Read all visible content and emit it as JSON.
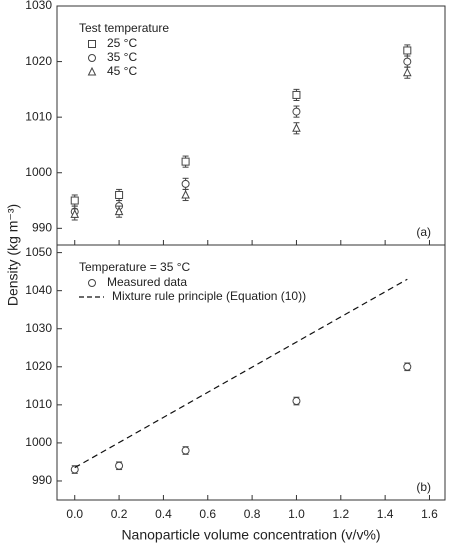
{
  "chart_data": [
    {
      "type": "scatter",
      "y_label": "Density (kg m⁻³)",
      "annotation": "(a)",
      "legend_title": "Test temperature",
      "x": [
        0,
        0.2,
        0.5,
        1.0,
        1.5
      ],
      "xlim": [
        -0.08,
        1.67
      ],
      "xticks": [
        0,
        0.2,
        0.4,
        0.6,
        0.8,
        1.0,
        1.2,
        1.4,
        1.6
      ],
      "ylim": [
        987,
        1030
      ],
      "yticks": [
        990,
        1000,
        1010,
        1020,
        1030
      ],
      "series": [
        {
          "name": "25 °C",
          "marker": "square",
          "color": "#444",
          "values": [
            995,
            996,
            1002,
            1014,
            1022
          ],
          "errors": [
            1,
            1,
            1,
            1,
            1
          ]
        },
        {
          "name": "35 °C",
          "marker": "circle",
          "color": "#444",
          "values": [
            993,
            994,
            998,
            1011,
            1020
          ],
          "errors": [
            1,
            1,
            1,
            1,
            1
          ]
        },
        {
          "name": "45 °C",
          "marker": "triangle",
          "color": "#444",
          "values": [
            992.5,
            993,
            996,
            1008,
            1018
          ],
          "errors": [
            1,
            1,
            1,
            1,
            1
          ]
        }
      ]
    },
    {
      "type": "scatter",
      "x_label": "Nanoparticle volume concentration (v/v%)",
      "annotation": "(b)",
      "legend_title": "Temperature = 35 °C",
      "x": [
        0,
        0.2,
        0.5,
        1.0,
        1.5
      ],
      "xlim": [
        -0.08,
        1.67
      ],
      "xticks": [
        {
          "value": 0,
          "label": "0.0"
        },
        {
          "value": 0.2,
          "label": "0.2"
        },
        {
          "value": 0.4,
          "label": "0.4"
        },
        {
          "value": 0.6,
          "label": "0.6"
        },
        {
          "value": 0.8,
          "label": "0.8"
        },
        {
          "value": 1.0,
          "label": "1.0"
        },
        {
          "value": 1.2,
          "label": "1.2"
        },
        {
          "value": 1.4,
          "label": "1.4"
        },
        {
          "value": 1.6,
          "label": "1.6"
        }
      ],
      "ylim": [
        985,
        1052
      ],
      "yticks": [
        990,
        1000,
        1010,
        1020,
        1030,
        1040,
        1050
      ],
      "series": [
        {
          "name": "Measured data",
          "marker": "circle",
          "color": "#444",
          "values": [
            993,
            994,
            998,
            1011,
            1020
          ],
          "errors": [
            1,
            1,
            1,
            1,
            1
          ]
        },
        {
          "name": "Mixture rule principle (Equation (10))",
          "marker": "dashed-line",
          "color": "#111",
          "x": [
            0,
            1.5
          ],
          "values": [
            993.5,
            1043
          ]
        }
      ]
    }
  ]
}
